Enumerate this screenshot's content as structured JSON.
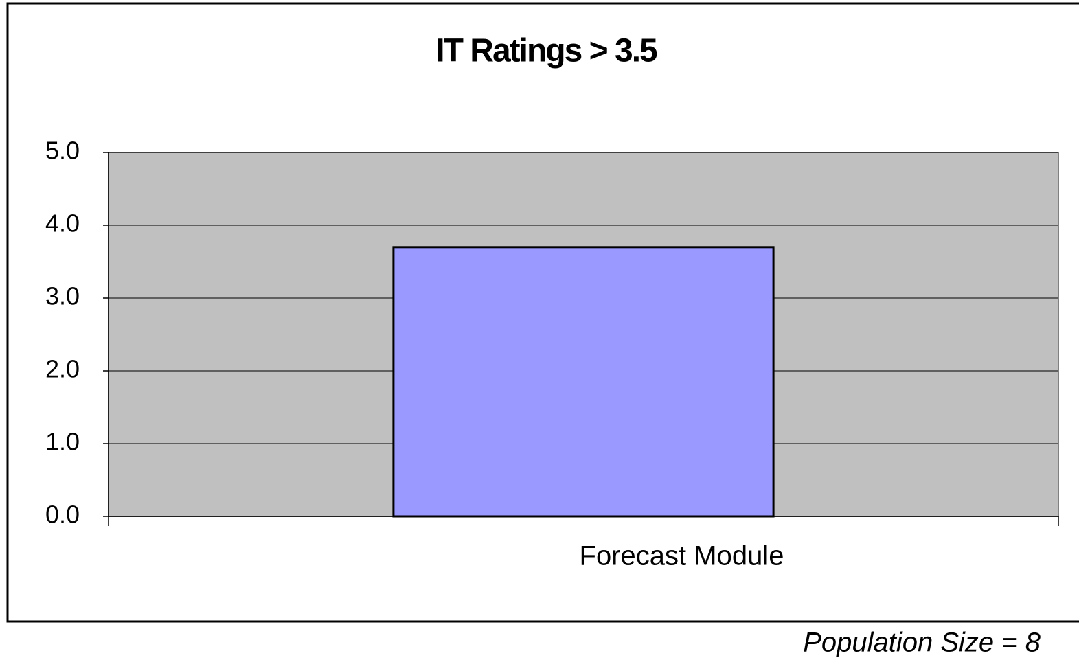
{
  "chart_data": {
    "type": "bar",
    "title": "IT Ratings > 3.5",
    "categories": [
      "Forecast Module"
    ],
    "values": [
      3.7
    ],
    "color": "#9999ff",
    "ylim": [
      0,
      5
    ],
    "yticks": [
      {
        "value": 0,
        "label": "0.0"
      },
      {
        "value": 1,
        "label": "1.0"
      },
      {
        "value": 2,
        "label": "2.0"
      },
      {
        "value": 3,
        "label": "3.0"
      },
      {
        "value": 4,
        "label": "4.0"
      },
      {
        "value": 5,
        "label": "5.0"
      }
    ],
    "grid": true,
    "annotation": "Population Size = 8"
  }
}
